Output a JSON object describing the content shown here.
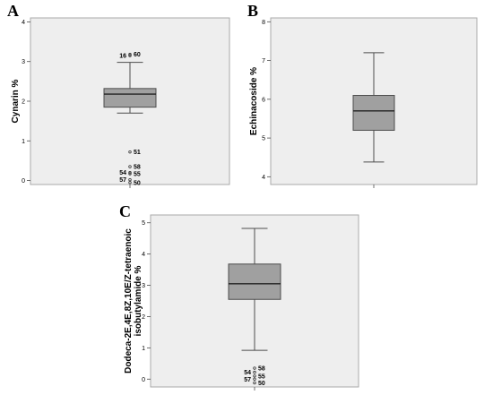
{
  "chart_data": [
    {
      "type": "box",
      "panel_label": "A",
      "ylabel": "Cynarin %",
      "ylim": [
        -0.1,
        4.1
      ],
      "yticks": [
        0,
        1,
        2,
        3,
        4
      ],
      "box": {
        "whisker_low": 1.7,
        "q1": 1.85,
        "median": 2.18,
        "q3": 2.32,
        "whisker_high": 2.98
      },
      "outliers": [
        {
          "y": 3.15,
          "label": "16",
          "side": "left"
        },
        {
          "y": 3.18,
          "label": "60",
          "side": "right"
        },
        {
          "y": 0.72,
          "label": "51",
          "side": "right"
        },
        {
          "y": 0.35,
          "label": "58",
          "side": "right"
        },
        {
          "y": 0.2,
          "label": "54",
          "side": "left"
        },
        {
          "y": 0.17,
          "label": "55",
          "side": "right"
        },
        {
          "y": 0.02,
          "label": "57",
          "side": "left"
        },
        {
          "y": -0.05,
          "label": "50",
          "side": "right"
        }
      ]
    },
    {
      "type": "box",
      "panel_label": "B",
      "ylabel": "Echinacoside %",
      "ylim": [
        3.8,
        8.1
      ],
      "yticks": [
        4,
        5,
        6,
        7,
        8
      ],
      "box": {
        "whisker_low": 4.38,
        "q1": 5.2,
        "median": 5.7,
        "q3": 6.1,
        "whisker_high": 7.2
      },
      "outliers": []
    },
    {
      "type": "box",
      "panel_label": "C",
      "ylabel_lines": [
        "Dodeca-2E,4E,8Z,10E/Z-tetraenoic",
        "isobutylamide %"
      ],
      "ylim": [
        -0.25,
        5.25
      ],
      "yticks": [
        0,
        1,
        2,
        3,
        4,
        5
      ],
      "box": {
        "whisker_low": 0.92,
        "q1": 2.55,
        "median": 3.05,
        "q3": 3.68,
        "whisker_high": 4.82
      },
      "outliers": [
        {
          "y": 0.35,
          "label": "58",
          "side": "right"
        },
        {
          "y": 0.22,
          "label": "54",
          "side": "left"
        },
        {
          "y": 0.1,
          "label": "55",
          "side": "right"
        },
        {
          "y": 0.0,
          "label": "57",
          "side": "left"
        },
        {
          "y": -0.12,
          "label": "50",
          "side": "right"
        }
      ]
    }
  ],
  "colors": {
    "plot_bg": "#eeeeee",
    "plot_border": "#a9a9a9",
    "box_fill": "#a0a0a0",
    "line": "#4d4d4d"
  }
}
